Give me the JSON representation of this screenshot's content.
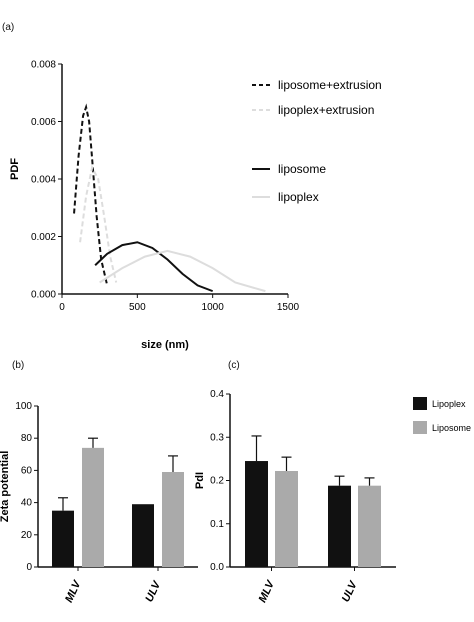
{
  "panels": {
    "a": "(a)",
    "b": "(b)",
    "c": "(c)"
  },
  "chart_data": [
    {
      "id": "a",
      "type": "line",
      "xlabel": "size (nm)",
      "ylabel": "PDF",
      "xlim": [
        0,
        1500
      ],
      "ylim": [
        0,
        0.008
      ],
      "xticks": [
        "0",
        "500",
        "1000",
        "1500"
      ],
      "yticks": [
        "0.000",
        "0.002",
        "0.004",
        "0.006",
        "0.008"
      ],
      "legend_placement": "right",
      "series": [
        {
          "name": "liposome+extrusion",
          "style": "dashed",
          "color": "#111111",
          "x": [
            80,
            110,
            140,
            160,
            180,
            200,
            230,
            260,
            300
          ],
          "y": [
            0.0028,
            0.0048,
            0.0062,
            0.0065,
            0.006,
            0.0047,
            0.0027,
            0.0012,
            0.0003
          ]
        },
        {
          "name": "lipoplex+extrusion",
          "style": "dashed",
          "color": "#dddddd",
          "x": [
            120,
            160,
            200,
            240,
            280,
            320,
            360
          ],
          "y": [
            0.0018,
            0.0034,
            0.0044,
            0.004,
            0.0027,
            0.0013,
            0.0004
          ]
        },
        {
          "name": "liposome",
          "style": "solid",
          "color": "#111111",
          "x": [
            220,
            300,
            400,
            500,
            600,
            700,
            800,
            900,
            1000
          ],
          "y": [
            0.001,
            0.0014,
            0.0017,
            0.0018,
            0.0016,
            0.0012,
            0.0007,
            0.0003,
            0.0001
          ]
        },
        {
          "name": "lipoplex",
          "style": "solid",
          "color": "#dddddd",
          "x": [
            250,
            400,
            550,
            700,
            850,
            1000,
            1150,
            1350
          ],
          "y": [
            0.0004,
            0.0009,
            0.0013,
            0.0015,
            0.0013,
            0.0009,
            0.0004,
            0.0001
          ]
        }
      ]
    },
    {
      "id": "b",
      "type": "bar",
      "ylabel": "Zeta potential",
      "categories": [
        "MLV",
        "ULV"
      ],
      "ylim": [
        0,
        100
      ],
      "yticks": [
        "0",
        "20",
        "40",
        "60",
        "80",
        "100"
      ],
      "series": [
        {
          "name": "Lipoplex",
          "color": "#111111",
          "values": [
            35,
            39
          ],
          "errors": [
            8,
            0
          ]
        },
        {
          "name": "Liposome",
          "color": "#aaaaaa",
          "values": [
            74,
            59
          ],
          "errors": [
            6,
            10
          ]
        }
      ]
    },
    {
      "id": "c",
      "type": "bar",
      "ylabel": "PdI",
      "categories": [
        "MLV",
        "ULV"
      ],
      "ylim": [
        0,
        0.4
      ],
      "yticks": [
        "0.0",
        "0.1",
        "0.2",
        "0.3",
        "0.4"
      ],
      "legend_placement": "right",
      "series": [
        {
          "name": "Lipoplex",
          "color": "#111111",
          "values": [
            0.245,
            0.188
          ],
          "errors": [
            0.058,
            0.022
          ]
        },
        {
          "name": "Liposome",
          "color": "#aaaaaa",
          "values": [
            0.222,
            0.188
          ],
          "errors": [
            0.032,
            0.018
          ]
        }
      ]
    }
  ]
}
